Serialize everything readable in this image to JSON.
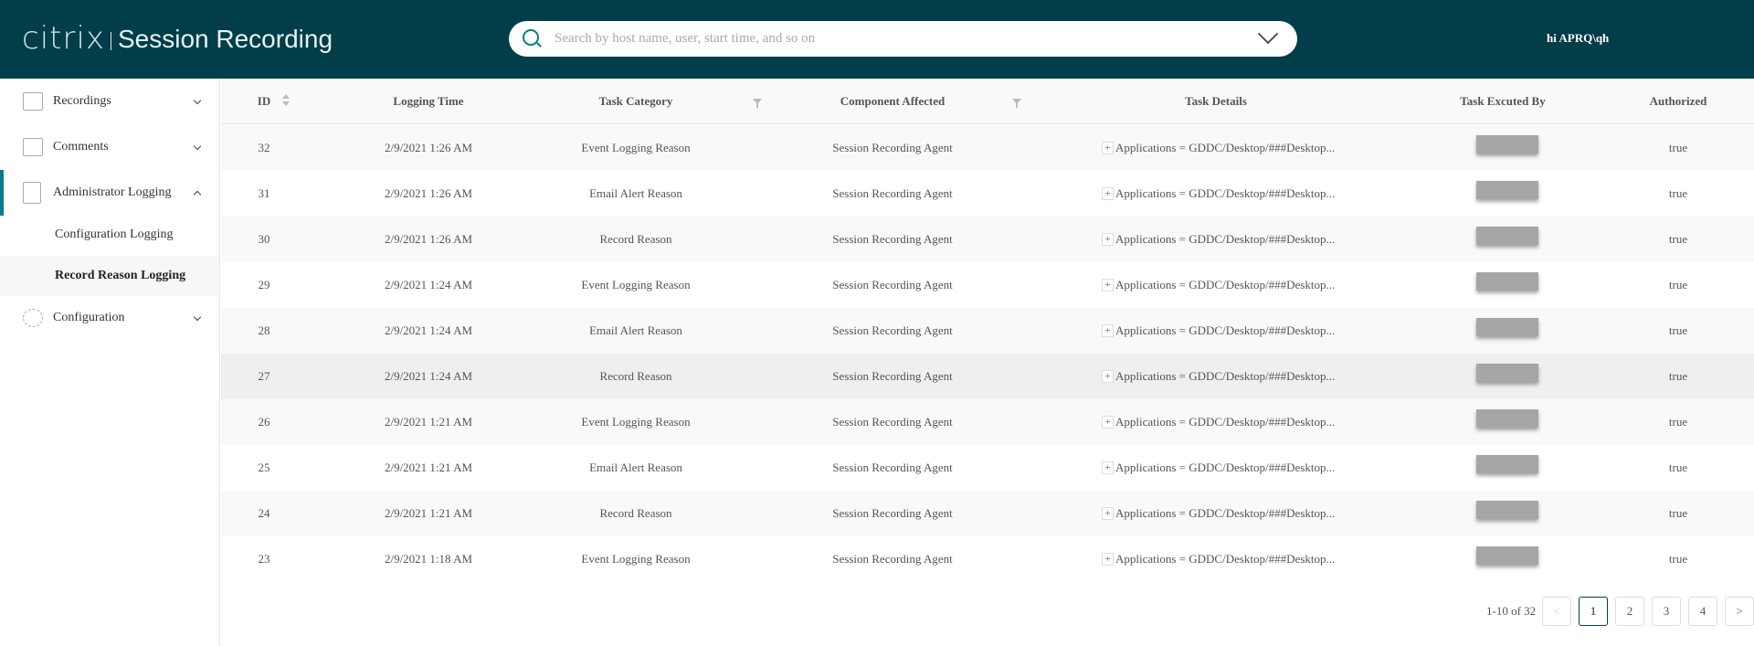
{
  "header": {
    "logo": "citrix",
    "title": "Session Recording",
    "search_placeholder": "Search by host name, user, start time, and so on",
    "user": "hi APRQ\\qh"
  },
  "sidebar": {
    "items": [
      {
        "label": "Recordings",
        "icon": "play-icon",
        "expanded": false
      },
      {
        "label": "Comments",
        "icon": "comment-icon",
        "expanded": false
      },
      {
        "label": "Administrator Logging",
        "icon": "admin-log-icon",
        "expanded": true,
        "active": true
      },
      {
        "label": "Configuration",
        "icon": "gear-icon",
        "expanded": false
      }
    ],
    "subitems": [
      {
        "label": "Configuration Logging"
      },
      {
        "label": "Record Reason Logging",
        "selected": true
      }
    ]
  },
  "table": {
    "columns": [
      "ID",
      "Logging Time",
      "Task Category",
      "Component Affected",
      "Task Details",
      "Task Excuted By",
      "Authorized"
    ],
    "rows": [
      {
        "id": "32",
        "time": "2/9/2021 1:26 AM",
        "category": "Event Logging Reason",
        "component": "Session Recording Agent",
        "details": "Applications = GDDC/Desktop/###Desktop...",
        "authorized": "true"
      },
      {
        "id": "31",
        "time": "2/9/2021 1:26 AM",
        "category": "Email Alert Reason",
        "component": "Session Recording Agent",
        "details": "Applications = GDDC/Desktop/###Desktop...",
        "authorized": "true"
      },
      {
        "id": "30",
        "time": "2/9/2021 1:26 AM",
        "category": "Record Reason",
        "component": "Session Recording Agent",
        "details": "Applications = GDDC/Desktop/###Desktop...",
        "authorized": "true"
      },
      {
        "id": "29",
        "time": "2/9/2021 1:24 AM",
        "category": "Event Logging Reason",
        "component": "Session Recording Agent",
        "details": "Applications = GDDC/Desktop/###Desktop...",
        "authorized": "true"
      },
      {
        "id": "28",
        "time": "2/9/2021 1:24 AM",
        "category": "Email Alert Reason",
        "component": "Session Recording Agent",
        "details": "Applications = GDDC/Desktop/###Desktop...",
        "authorized": "true"
      },
      {
        "id": "27",
        "time": "2/9/2021 1:24 AM",
        "category": "Record Reason",
        "component": "Session Recording Agent",
        "details": "Applications = GDDC/Desktop/###Desktop...",
        "authorized": "true"
      },
      {
        "id": "26",
        "time": "2/9/2021 1:21 AM",
        "category": "Event Logging Reason",
        "component": "Session Recording Agent",
        "details": "Applications = GDDC/Desktop/###Desktop...",
        "authorized": "true"
      },
      {
        "id": "25",
        "time": "2/9/2021 1:21 AM",
        "category": "Email Alert Reason",
        "component": "Session Recording Agent",
        "details": "Applications = GDDC/Desktop/###Desktop...",
        "authorized": "true"
      },
      {
        "id": "24",
        "time": "2/9/2021 1:21 AM",
        "category": "Record Reason",
        "component": "Session Recording Agent",
        "details": "Applications = GDDC/Desktop/###Desktop...",
        "authorized": "true"
      },
      {
        "id": "23",
        "time": "2/9/2021 1:18 AM",
        "category": "Event Logging Reason",
        "component": "Session Recording Agent",
        "details": "Applications = GDDC/Desktop/###Desktop...",
        "authorized": "true"
      }
    ]
  },
  "pagination": {
    "info": "1-10 of 32",
    "pages": [
      "1",
      "2",
      "3",
      "4"
    ],
    "current": "1",
    "prev": "<",
    "next": ">"
  },
  "colors": {
    "header_bg": "#023d4a",
    "accent": "#0b7a8a"
  }
}
